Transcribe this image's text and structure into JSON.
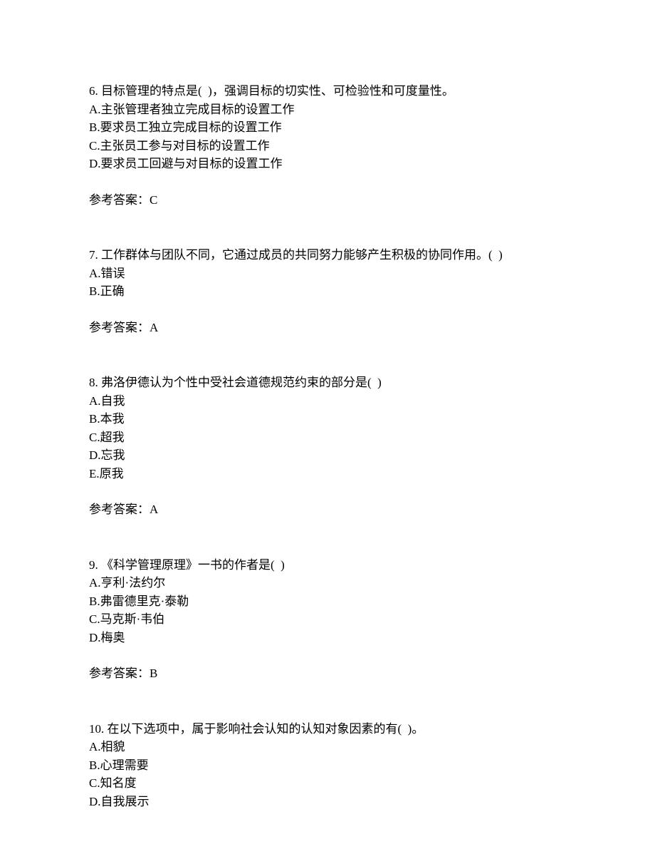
{
  "questions": [
    {
      "number": "6.",
      "stem": " 目标管理的特点是(  )，强调目标的切实性、可检验性和可度量性。",
      "options": [
        "A.主张管理者独立完成目标的设置工作",
        "B.要求员工独立完成目标的设置工作",
        "C.主张员工参与对目标的设置工作",
        "D.要求员工回避与对目标的设置工作"
      ],
      "answer_label": "参考答案：",
      "answer": "C"
    },
    {
      "number": "7.",
      "stem": " 工作群体与团队不同，它通过成员的共同努力能够产生积极的协同作用。(  )",
      "options": [
        "A.错误",
        "B.正确"
      ],
      "answer_label": "参考答案：",
      "answer": "A"
    },
    {
      "number": "8.",
      "stem": " 弗洛伊德认为个性中受社会道德规范约束的部分是(  )",
      "options": [
        "A.自我",
        "B.本我",
        "C.超我",
        "D.忘我",
        "E.原我"
      ],
      "answer_label": "参考答案：",
      "answer": "A"
    },
    {
      "number": "9.",
      "stem": " 《科学管理原理》一书的作者是(  )",
      "options": [
        "A.亨利·法约尔",
        "B.弗雷德里克·泰勒",
        "C.马克斯·韦伯",
        "D.梅奥"
      ],
      "answer_label": "参考答案：",
      "answer": "B"
    },
    {
      "number": "10.",
      "stem": " 在以下选项中，属于影响社会认知的认知对象因素的有(  )。",
      "options": [
        "A.相貌",
        "B.心理需要",
        "C.知名度",
        "D.自我展示"
      ],
      "answer_label": "",
      "answer": ""
    }
  ]
}
